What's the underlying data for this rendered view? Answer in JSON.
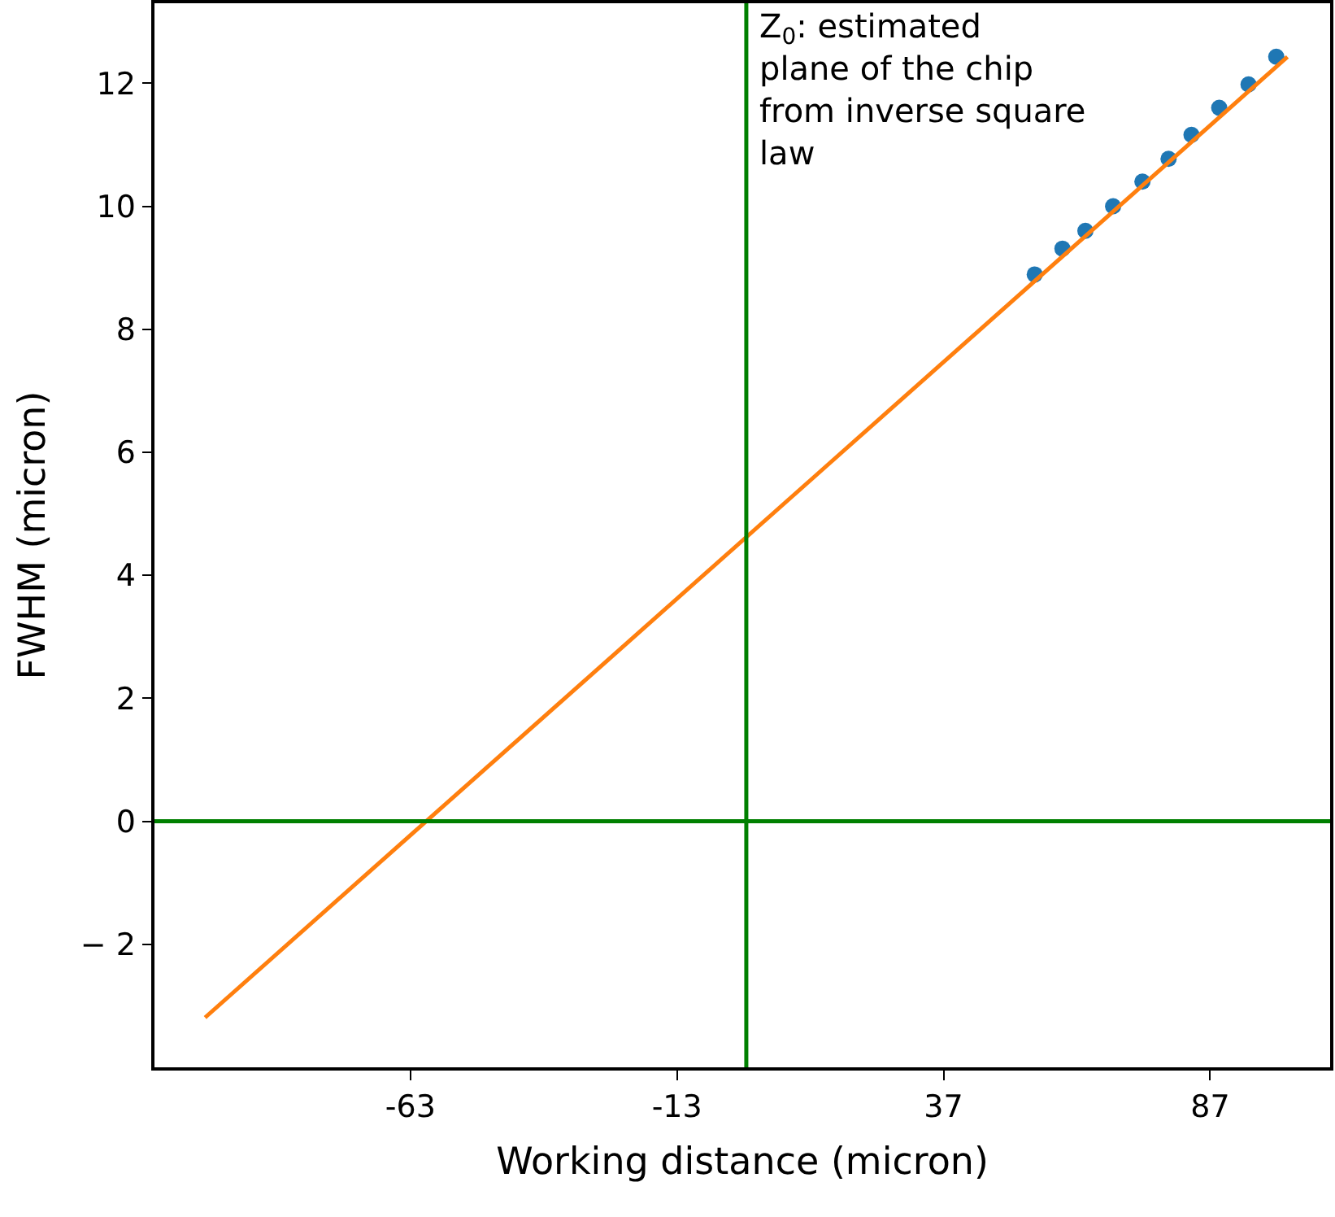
{
  "chart_data": {
    "type": "scatter",
    "xlabel": "Working distance (micron)",
    "ylabel": "FWHM (micron)",
    "xlim": [
      -111,
      109.5
    ],
    "ylim": [
      -4.0,
      13.3
    ],
    "xticks": [
      -63,
      -13,
      37,
      87
    ],
    "yticks": [
      {
        "value": -2,
        "label": "− 2"
      },
      0,
      2,
      4,
      6,
      8,
      10,
      12
    ],
    "series": [
      {
        "color": "#1f77b4",
        "x": [
          54.1,
          59.3,
          63.6,
          68.8,
          74.3,
          79.2,
          83.5,
          88.7,
          94.2,
          99.4
        ],
        "values": [
          8.89,
          9.31,
          9.6,
          10.0,
          10.4,
          10.77,
          11.16,
          11.6,
          11.98,
          12.43
        ]
      },
      {
        "type": "line",
        "marker": "none",
        "color": "#ff7f0e",
        "x": [
          -101.5,
          101.5
        ],
        "values": [
          -3.19,
          12.43
        ]
      }
    ],
    "ref_lines": [
      {
        "axis": "x",
        "value": 0,
        "color": "#008000",
        "label": "Z$_{0}$: estimated\nplane of the chip\nfrom inverse square\nlaw"
      },
      {
        "axis": "y",
        "value": 0,
        "color": "#008000"
      }
    ],
    "marker": "circle"
  }
}
